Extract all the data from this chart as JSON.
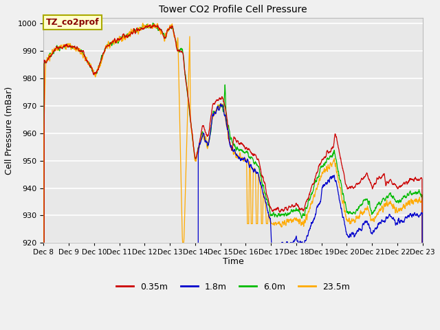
{
  "title": "Tower CO2 Profile Cell Pressure",
  "ylabel": "Cell Pressure (mBar)",
  "xlabel": "Time",
  "annotation": "TZ_co2prof",
  "ylim": [
    920,
    1002
  ],
  "yticks": [
    920,
    930,
    940,
    950,
    960,
    970,
    980,
    990,
    1000
  ],
  "legend_labels": [
    "0.35m",
    "1.8m",
    "6.0m",
    "23.5m"
  ],
  "line_colors": [
    "#cc0000",
    "#0000cc",
    "#00bb00",
    "#ffaa00"
  ],
  "fig_facecolor": "#f0f0f0",
  "ax_facecolor": "#e8e8e8",
  "grid_color": "#ffffff",
  "annot_facecolor": "#ffffcc",
  "annot_edgecolor": "#aaaa00",
  "title_fontsize": 10,
  "axis_label_fontsize": 9,
  "tick_fontsize": 8,
  "legend_fontsize": 9,
  "linewidth": 0.9
}
